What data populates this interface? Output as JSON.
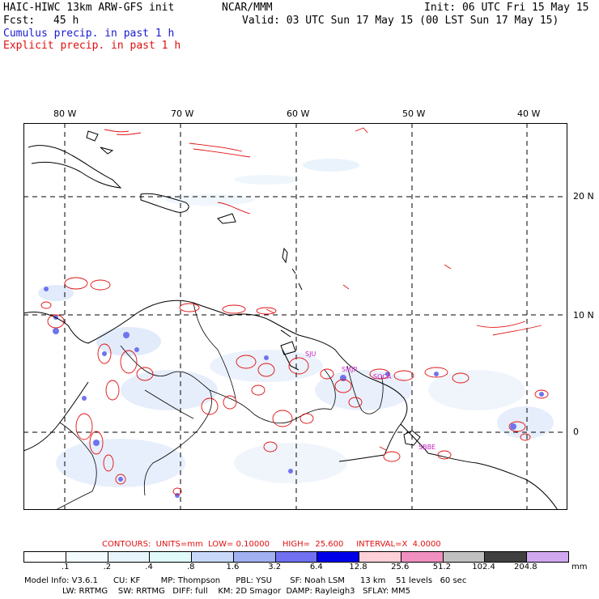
{
  "header": {
    "title": "HAIC-HIWC 13km ARW-GFS init",
    "org": "NCAR/MMM",
    "init": "Init: 06 UTC Fri 15 May 15",
    "fcst_label": "Fcst:",
    "fcst_value": "45 h",
    "valid": "Valid: 03 UTC Sun 17 May 15 (00 LST Sun 17 May 15)",
    "cumulus": "Cumulus precip. in past 1 h",
    "explicit": "Explicit precip. in past 1 h"
  },
  "map": {
    "lon_labels": [
      "80 W",
      "70 W",
      "60 W",
      "50 W",
      "40 W"
    ],
    "lat_labels": [
      "20 N",
      "10 N",
      "0"
    ],
    "stations": [
      "SJU",
      "SMJP",
      "SOCA",
      "SBBE"
    ]
  },
  "contours": {
    "text": "CONTOURS:  UNITS=mm  LOW= 0.10000     HIGH=  25.600     INTERVAL=X  4.0000"
  },
  "colorbar": {
    "labels": [
      ".1",
      ".2",
      ".4",
      ".8",
      "1.6",
      "3.2",
      "6.4",
      "12.8",
      "25.6",
      "51.2",
      "102.4",
      "204.8"
    ],
    "unit": "mm",
    "colors": [
      "#ffffff",
      "#f4fbff",
      "#e8f4fb",
      "#e0fafa",
      "#c8d8f8",
      "#a0b0f0",
      "#7070f0",
      "#0000e8",
      "#ffd0d8",
      "#f090c0",
      "#c0c0c0",
      "#404040",
      "#d0a8f0"
    ]
  },
  "model_info": {
    "line1": "Model Info: V3.6.1      CU: KF        MP: Thompson      PBL: YSU       SF: Noah LSM      13 km    51 levels   60 sec",
    "line2": "LW: RRTMG    SW: RRTMG   DIFF: full    KM: 2D Smagor  DAMP: Rayleigh3   SFLAY: MM5"
  }
}
